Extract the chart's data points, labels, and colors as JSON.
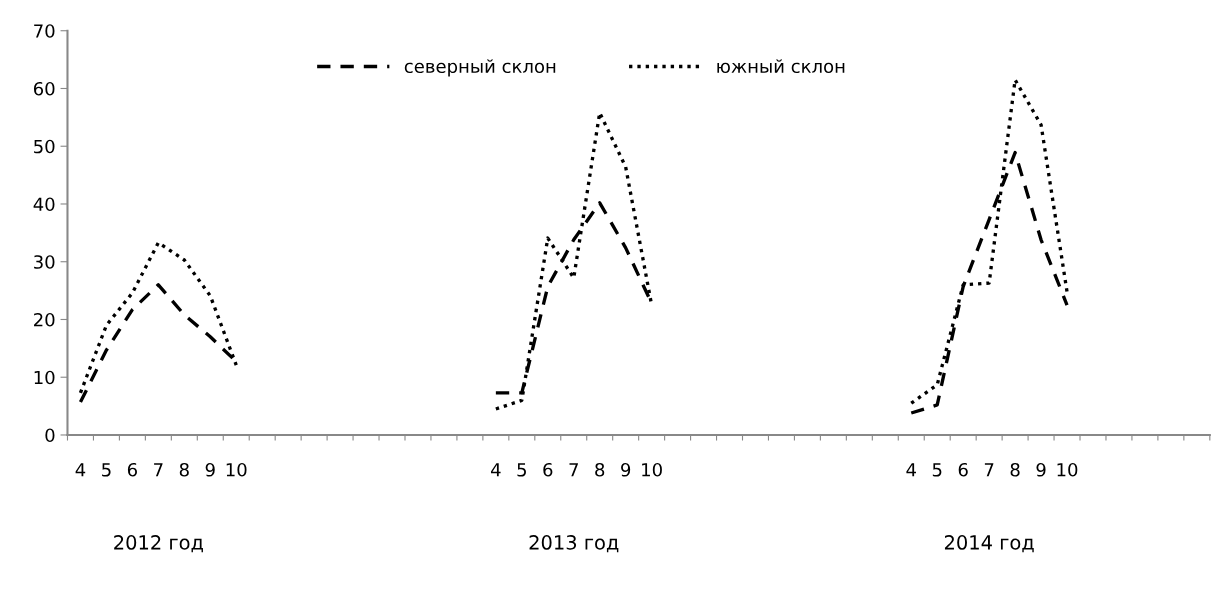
{
  "chart_data": {
    "type": "line",
    "categories": [
      "4",
      "5",
      "6",
      "7",
      "8",
      "9",
      "10",
      null,
      null,
      null,
      null,
      null,
      null,
      null,
      null,
      null,
      "4",
      "5",
      "6",
      "7",
      "8",
      "9",
      "10",
      null,
      null,
      null,
      null,
      null,
      null,
      null,
      null,
      null,
      "4",
      "5",
      "6",
      "7",
      "8",
      "9",
      "10",
      null,
      null,
      null,
      null,
      null
    ],
    "series": [
      {
        "name": "северный склон",
        "color": "#000000",
        "line_style": "dashed",
        "values": [
          5.7,
          14.7,
          21.7,
          26,
          20.8,
          17,
          12.7,
          null,
          null,
          null,
          null,
          null,
          null,
          null,
          null,
          null,
          7.3,
          7.3,
          25.7,
          33.8,
          40.2,
          32.4,
          22.8,
          null,
          null,
          null,
          null,
          null,
          null,
          null,
          null,
          null,
          3.8,
          5.2,
          25.7,
          37.3,
          48.9,
          33.8,
          22.5,
          null,
          null,
          null,
          null,
          null
        ]
      },
      {
        "name": "южный склон",
        "color": "#000000",
        "line_style": "dotted",
        "values": [
          7.3,
          19,
          24.6,
          33.3,
          30.3,
          24.1,
          12.1,
          null,
          null,
          null,
          null,
          null,
          null,
          null,
          null,
          null,
          4.5,
          6,
          34.1,
          27.2,
          55.8,
          46.4,
          22.5,
          null,
          null,
          null,
          null,
          null,
          null,
          null,
          null,
          null,
          5.5,
          8.7,
          26,
          26.3,
          61.5,
          53.7,
          24.8,
          null,
          null,
          null,
          null,
          null
        ]
      }
    ],
    "ylim": [
      0,
      70
    ],
    "yticks": [
      0,
      10,
      20,
      30,
      40,
      50,
      60,
      70
    ],
    "grid": false,
    "legend": "top",
    "annotations": [
      "2012 год",
      "2013 год",
      "2014 год"
    ]
  }
}
